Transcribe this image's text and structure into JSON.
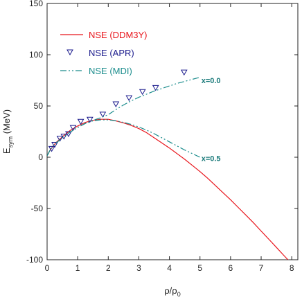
{
  "colors": {
    "ddm3y": "#e8141b",
    "apr": "#1a1a8c",
    "mdi": "#1a8c8c",
    "annotation": "#1a7a7a"
  },
  "chart_data": {
    "type": "line",
    "xlabel_main": "ρ/ρ",
    "xlabel_sub": "0",
    "ylabel_main": "E",
    "ylabel_sub": "sym",
    "ylabel_unit": " (MeV)",
    "xlim": [
      0,
      8.2
    ],
    "ylim": [
      -100,
      150
    ],
    "xticks": [
      0,
      1,
      2,
      3,
      4,
      5,
      6,
      7,
      8
    ],
    "yticks": [
      -100,
      -50,
      0,
      50,
      100,
      150
    ],
    "legend_position": "top-left",
    "annotations": [
      {
        "text": "x=0.0",
        "x": 5.0,
        "y": 75
      },
      {
        "text": "x=0.5",
        "x": 5.0,
        "y": -1
      }
    ],
    "series": [
      {
        "name": "NSE (DDM3Y)",
        "style": "solid",
        "x": [
          0,
          0.1,
          0.2,
          0.3,
          0.5,
          0.75,
          1.0,
          1.25,
          1.5,
          1.75,
          2.0,
          2.25,
          2.5,
          2.75,
          3.0,
          3.25,
          3.5,
          3.75,
          4.0,
          4.25,
          4.5,
          4.75,
          5.0,
          5.25,
          5.5,
          5.75,
          6.0,
          6.25,
          6.5,
          6.75,
          7.0,
          7.25,
          7.5,
          7.75,
          8.0,
          8.2
        ],
        "y": [
          1.5,
          7,
          11,
          14.5,
          20,
          26,
          30.5,
          34,
          36,
          37,
          37,
          35.5,
          33.5,
          31,
          28,
          24,
          19,
          14,
          9,
          3.5,
          -2,
          -8,
          -14,
          -20.5,
          -27.5,
          -34.5,
          -41.5,
          -49,
          -56.5,
          -64,
          -72,
          -80,
          -88,
          -96,
          -104,
          -110
        ]
      },
      {
        "name": "NSE (APR)",
        "style": "marker",
        "x": [
          0.15,
          0.25,
          0.42,
          0.55,
          0.7,
          0.85,
          1.1,
          1.4,
          1.82,
          2.25,
          2.68,
          3.12,
          3.55,
          4.48
        ],
        "y": [
          8.5,
          12.5,
          18.5,
          20.5,
          23,
          29,
          35,
          37,
          42,
          52,
          58,
          64,
          68,
          83
        ]
      },
      {
        "name": "NSE (MDI)",
        "style": "dashdotdot",
        "x": [
          0,
          0.1,
          0.2,
          0.3,
          0.5,
          0.75,
          1.0,
          1.25,
          1.5,
          1.75,
          2.0,
          2.25,
          2.5,
          2.75,
          3.0,
          3.25,
          3.5,
          3.75,
          4.0,
          4.25,
          4.5,
          4.75,
          5.0
        ],
        "y": [
          1.5,
          7,
          11,
          14,
          19,
          24.5,
          29,
          33,
          36,
          38.5,
          41.5,
          46.5,
          51,
          55,
          58.5,
          61.5,
          64.5,
          67,
          69.5,
          72,
          74,
          76,
          78
        ]
      },
      {
        "name": "",
        "style": "dashdotdot",
        "x": [
          0,
          0.1,
          0.2,
          0.3,
          0.5,
          0.75,
          1.0,
          1.25,
          1.5,
          1.75,
          2.0,
          2.25,
          2.5,
          2.75,
          3.0,
          3.25,
          3.5,
          3.75,
          4.0,
          4.25,
          4.5,
          4.75,
          5.0
        ],
        "y": [
          1.5,
          7,
          11,
          14,
          19,
          24.5,
          29,
          33,
          35.5,
          36.5,
          36.5,
          35.5,
          34,
          32,
          29.5,
          26.5,
          23,
          19,
          15,
          11,
          7,
          3.5,
          0
        ]
      }
    ]
  }
}
